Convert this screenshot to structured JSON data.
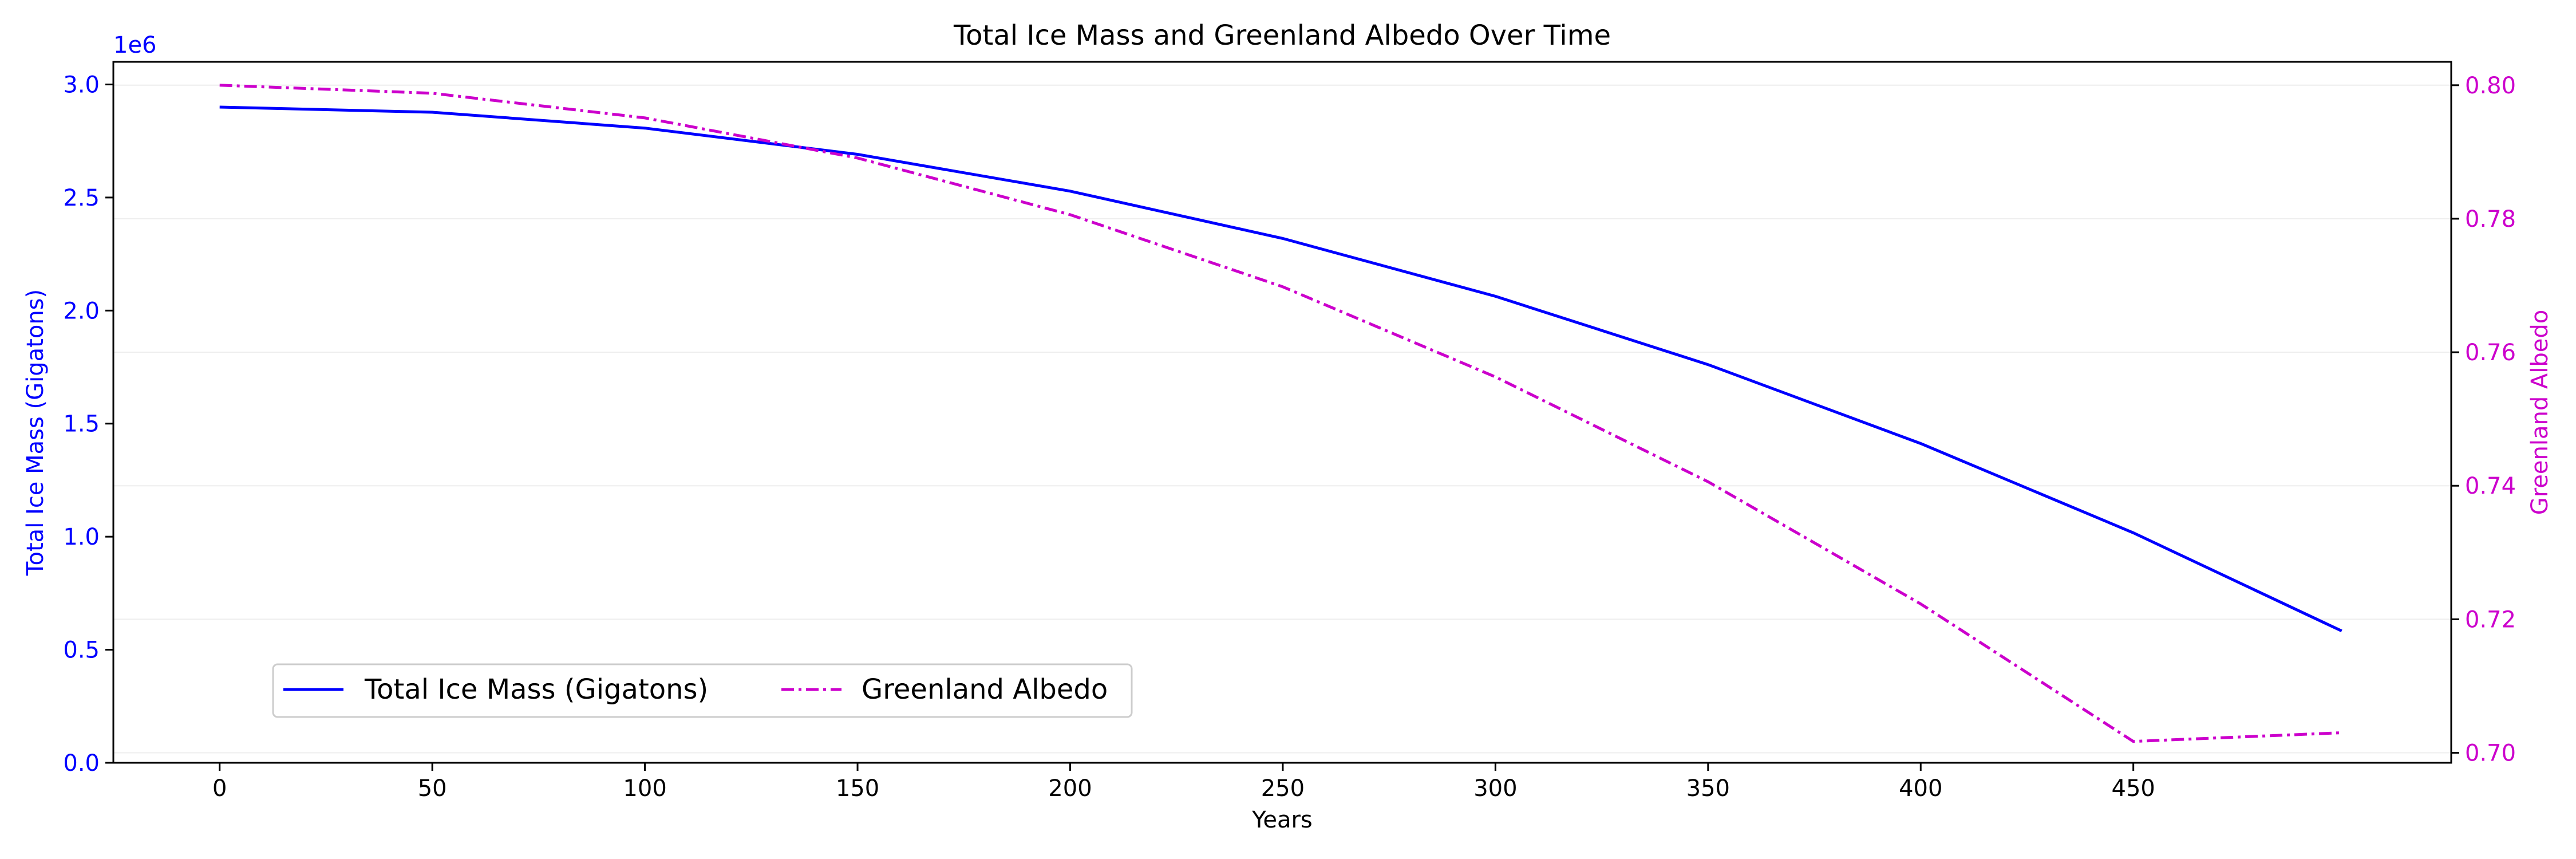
{
  "colors": {
    "ice_mass": "#0000ff",
    "albedo": "#cc00cc",
    "axis": "#000000",
    "grid": "#eeeeee"
  },
  "chart_data": {
    "type": "line",
    "title": "Total Ice Mass and Greenland Albedo Over Time",
    "xlabel": "Years",
    "ylabel_left": "Total Ice Mass (Gigatons)",
    "ylabel_right": "Greenland Albedo",
    "left_offset_text": "1e6",
    "xlim": [
      -25,
      524.75
    ],
    "ylim_left": [
      0,
      3.1
    ],
    "ylim_right": [
      0.6985,
      0.8035
    ],
    "x_ticks": [
      0,
      50,
      100,
      150,
      200,
      250,
      300,
      350,
      400,
      450
    ],
    "x_tick_labels": [
      "0",
      "50",
      "100",
      "150",
      "200",
      "250",
      "300",
      "350",
      "400",
      "450"
    ],
    "y_left_ticks": [
      0,
      0.5,
      1.0,
      1.5,
      2.0,
      2.5,
      3.0
    ],
    "y_left_tick_labels": [
      "0.0",
      "0.5",
      "1.0",
      "1.5",
      "2.0",
      "2.5",
      "3.0"
    ],
    "y_right_ticks": [
      0.7,
      0.72,
      0.74,
      0.76,
      0.78,
      0.8
    ],
    "y_right_tick_labels": [
      "0.70",
      "0.72",
      "0.74",
      "0.76",
      "0.78",
      "0.80"
    ],
    "grid": "horizontal, faint",
    "legend_placement": "lower-left",
    "x": [
      0,
      50,
      100,
      150,
      200,
      250,
      300,
      350,
      400,
      450,
      499
    ],
    "series": [
      {
        "name": "Total Ice Mass (Gigatons)",
        "axis": "left",
        "style": "solid",
        "values": [
          2.9,
          2.877,
          2.807,
          2.691,
          2.528,
          2.319,
          2.063,
          1.761,
          1.412,
          1.017,
          0.583
        ]
      },
      {
        "name": "Greenland Albedo",
        "axis": "right",
        "style": "dash-dot",
        "values": [
          0.8,
          0.7988,
          0.7951,
          0.7891,
          0.7806,
          0.7698,
          0.7563,
          0.7406,
          0.7223,
          0.7017,
          0.703
        ]
      }
    ]
  }
}
